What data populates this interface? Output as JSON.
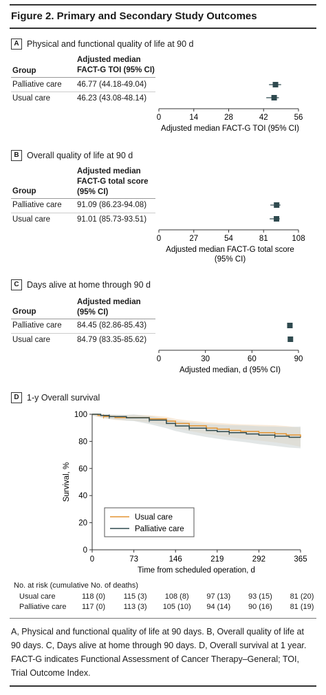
{
  "figure": {
    "title": "Figure 2. Primary and Secondary Study Outcomes",
    "caption": "A, Physical and functional quality of life at 90 days. B, Overall quality of life at 90 days. C, Days alive at home through 90 days. D, Overall survival at 1 year. FACT-G indicates Functional Assessment of Cancer Therapy–General; TOI, Trial Outcome Index."
  },
  "panels": {
    "A": {
      "letter": "A",
      "title": "Physical and functional quality of life at 90 d",
      "group_header": "Group",
      "col_header": [
        "Adjusted median",
        "FACT-G TOI (95% CI)"
      ],
      "rows": [
        {
          "group": "Palliative care",
          "value": "46.77 (44.18-49.04)"
        },
        {
          "group": "Usual care",
          "value": "46.23 (43.08-48.14)"
        }
      ],
      "xlabel": "Adjusted median FACT-G TOI (95% CI)"
    },
    "B": {
      "letter": "B",
      "title": "Overall quality of life at 90 d",
      "group_header": "Group",
      "col_header": [
        "Adjusted median",
        "FACT-G total score",
        "(95% CI)"
      ],
      "rows": [
        {
          "group": "Palliative care",
          "value": "91.09 (86.23-94.08)"
        },
        {
          "group": "Usual care",
          "value": "91.01 (85.73-93.51)"
        }
      ],
      "xlabel": [
        "Adjusted median FACT-G total score",
        "(95% CI)"
      ]
    },
    "C": {
      "letter": "C",
      "title": "Days alive at home through 90 d",
      "group_header": "Group",
      "col_header": [
        "Adjusted median",
        "(95% CI)"
      ],
      "rows": [
        {
          "group": "Palliative care",
          "value": "84.45 (82.86-85.43)"
        },
        {
          "group": "Usual care",
          "value": "84.79 (83.35-85.62)"
        }
      ],
      "xlabel": "Adjusted median, d (95% CI)"
    },
    "D": {
      "letter": "D",
      "title": "1-y Overall survival",
      "risk_title": "No. at risk (cumulative No. of deaths)",
      "risk_rows": [
        {
          "label": "Usual care",
          "values": [
            "118 (0)",
            "115 (3)",
            "108 (8)",
            "97 (13)",
            "93 (15)",
            "81 (20)"
          ]
        },
        {
          "label": "Palliative care",
          "values": [
            "117 (0)",
            "113 (3)",
            "105 (10)",
            "94 (14)",
            "90 (16)",
            "81 (19)"
          ]
        }
      ]
    }
  },
  "colors": {
    "usual": "#e39432",
    "palliative": "#2f4a4f",
    "band": "#cfd6d6",
    "marker": "#2f4a4f"
  },
  "chart_data": [
    {
      "type": "forest",
      "xlabel": "Adjusted median FACT-G TOI (95% CI)",
      "xlim": [
        0,
        56
      ],
      "xticks": [
        0,
        14,
        28,
        42,
        56
      ],
      "categories": [
        "Palliative care",
        "Usual care"
      ],
      "estimates": [
        46.77,
        46.23
      ],
      "ci_low": [
        44.18,
        43.08
      ],
      "ci_high": [
        49.04,
        48.14
      ]
    },
    {
      "type": "forest",
      "xlabel": "Adjusted median FACT-G total score (95% CI)",
      "xlim": [
        0,
        108
      ],
      "xticks": [
        0,
        27,
        54,
        81,
        108
      ],
      "categories": [
        "Palliative care",
        "Usual care"
      ],
      "estimates": [
        91.09,
        91.01
      ],
      "ci_low": [
        86.23,
        85.73
      ],
      "ci_high": [
        94.08,
        93.51
      ]
    },
    {
      "type": "forest",
      "xlabel": "Adjusted median, d (95% CI)",
      "xlim": [
        0,
        90
      ],
      "xticks": [
        0,
        30,
        60,
        90
      ],
      "categories": [
        "Palliative care",
        "Usual care"
      ],
      "estimates": [
        84.45,
        84.79
      ],
      "ci_low": [
        82.86,
        83.35
      ],
      "ci_high": [
        85.43,
        85.62
      ]
    },
    {
      "type": "line",
      "title": "1-y Overall survival",
      "xlabel": "Time from scheduled operation, d",
      "ylabel": "Survival, %",
      "xlim": [
        0,
        365
      ],
      "ylim": [
        0,
        100
      ],
      "xticks": [
        0,
        73,
        146,
        219,
        292,
        365
      ],
      "yticks": [
        0,
        20,
        40,
        60,
        80,
        100
      ],
      "legend": "bottom-left",
      "series": [
        {
          "name": "Usual care",
          "x": [
            0,
            10,
            20,
            40,
            73,
            100,
            130,
            146,
            170,
            200,
            219,
            240,
            260,
            292,
            320,
            340,
            365
          ],
          "y": [
            100,
            99.2,
            98.4,
            97.5,
            97.5,
            96.6,
            94.9,
            93.2,
            91.5,
            89.8,
            89.0,
            88.1,
            87.3,
            86.4,
            85.6,
            84.7,
            83.1
          ]
        },
        {
          "name": "Palliative care",
          "x": [
            0,
            15,
            30,
            60,
            73,
            100,
            130,
            146,
            170,
            200,
            219,
            240,
            270,
            292,
            320,
            345,
            365
          ],
          "y": [
            100,
            99.1,
            98.3,
            97.4,
            97.4,
            95.7,
            93.2,
            91.4,
            89.7,
            88.0,
            87.2,
            86.4,
            85.5,
            84.6,
            83.8,
            83.0,
            82.9
          ]
        }
      ]
    }
  ]
}
